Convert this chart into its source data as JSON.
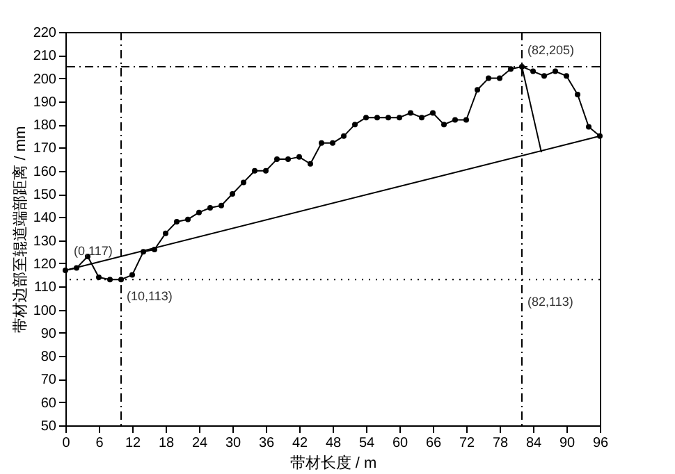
{
  "chart_data": {
    "type": "line",
    "xlabel": "带材长度 / m",
    "ylabel": "带材边部至辊道端部距离 / mm",
    "xlim": [
      0,
      96
    ],
    "xticks": [
      0,
      6,
      12,
      18,
      24,
      30,
      36,
      42,
      48,
      54,
      60,
      66,
      72,
      78,
      84,
      90,
      96
    ],
    "ylim": [
      50,
      220
    ],
    "yticks": [
      50,
      60,
      70,
      80,
      90,
      100,
      110,
      120,
      130,
      140,
      150,
      160,
      170,
      180,
      190,
      200,
      210,
      220
    ],
    "grid": false,
    "marker": "circle",
    "line_style": "solid",
    "series": [
      {
        "color": "#000000",
        "x": [
          0,
          2,
          4,
          6,
          8,
          10,
          12,
          14,
          16,
          18,
          20,
          22,
          24,
          26,
          28,
          30,
          32,
          34,
          36,
          38,
          40,
          42,
          44,
          46,
          48,
          50,
          52,
          54,
          56,
          58,
          60,
          62,
          64,
          66,
          68,
          70,
          72,
          74,
          76,
          78,
          80,
          82,
          84,
          86,
          88,
          90,
          92,
          94,
          96
        ],
        "values": [
          117,
          118,
          123,
          114,
          113,
          113,
          115,
          125,
          126,
          133,
          138,
          139,
          142,
          144,
          145,
          150,
          155,
          160,
          160,
          165,
          165,
          166,
          163,
          172,
          172,
          175,
          180,
          183,
          183,
          183,
          183,
          185,
          183,
          185,
          180,
          182,
          182,
          195,
          200,
          200,
          204,
          205,
          203,
          201,
          203,
          201,
          193,
          179,
          175
        ]
      },
      {
        "color": "#000000",
        "type": "line",
        "marker": "none",
        "x": [
          0,
          96
        ],
        "values": [
          117,
          175
        ]
      },
      {
        "color": "#000000",
        "type": "line",
        "marker": "none",
        "x": [
          82,
          85.5
        ],
        "values": [
          205,
          168
        ]
      }
    ],
    "ref_lines": [
      {
        "axis": "y",
        "value": 205,
        "line_style": "dashed"
      },
      {
        "axis": "y",
        "value": 113,
        "line_style": "dotted"
      },
      {
        "axis": "x",
        "value": 10,
        "line_style": "dashed"
      },
      {
        "axis": "x",
        "value": 82,
        "line_style": "dashed"
      }
    ],
    "annotations": [
      {
        "text": "(0,117)",
        "x": 0,
        "y": 117
      },
      {
        "text": "(10,113)",
        "x": 10,
        "y": 113
      },
      {
        "text": "(82,205)",
        "x": 82,
        "y": 205
      },
      "(82,113)"
    ]
  }
}
